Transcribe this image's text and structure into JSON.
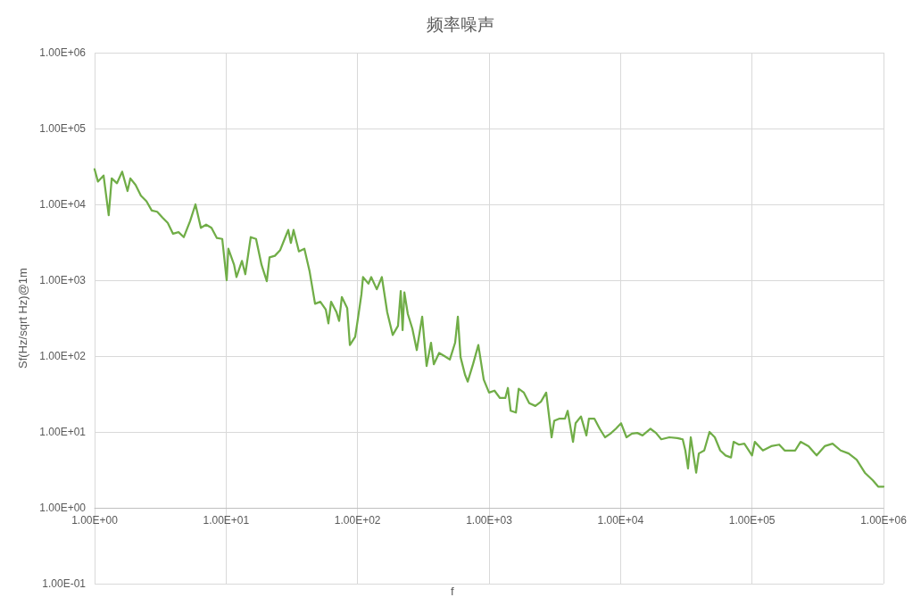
{
  "chart_data": {
    "type": "line",
    "title": "频率噪声",
    "xlabel": "f",
    "ylabel": "Sf(Hz/sqrt Hz)@1m",
    "log": "xy",
    "grid": true,
    "marker": "none",
    "line_style": "solid",
    "xlim": [
      1,
      1000000
    ],
    "xticks": [
      {
        "value": 1,
        "label": "1.00E+00"
      },
      {
        "value": 10,
        "label": "1.00E+01"
      },
      {
        "value": 100,
        "label": "1.00E+02"
      },
      {
        "value": 1000,
        "label": "1.00E+03"
      },
      {
        "value": 10000,
        "label": "1.00E+04"
      },
      {
        "value": 100000,
        "label": "1.00E+05"
      },
      {
        "value": 1000000,
        "label": "1.00E+06"
      }
    ],
    "ylim": [
      0.1,
      1000000
    ],
    "yticks": [
      {
        "value": 0.1,
        "label": "1.00E-01"
      },
      {
        "value": 1,
        "label": "1.00E+00"
      },
      {
        "value": 10,
        "label": "1.00E+01"
      },
      {
        "value": 100,
        "label": "1.00E+02"
      },
      {
        "value": 1000,
        "label": "1.00E+03"
      },
      {
        "value": 10000,
        "label": "1.00E+04"
      },
      {
        "value": 100000,
        "label": "1.00E+05"
      },
      {
        "value": 1000000,
        "label": "1.00E+06"
      }
    ],
    "series": [
      {
        "color": "#70ad47",
        "x": [
          1,
          1.06,
          1.17,
          1.28,
          1.35,
          1.48,
          1.62,
          1.78,
          1.87,
          2.05,
          2.25,
          2.48,
          2.72,
          2.99,
          3.28,
          3.6,
          3.95,
          4.35,
          4.77,
          5.32,
          5.85,
          6.43,
          7.05,
          7.74,
          8.51,
          9.35,
          10.1,
          10.4,
          11.5,
          12,
          13.2,
          14,
          15.4,
          16.9,
          18.6,
          20.4,
          21.4,
          23.5,
          25.8,
          28.4,
          29.7,
          31.1,
          32.6,
          35.8,
          39.4,
          43.2,
          47.5,
          52.1,
          57.3,
          60,
          62.9,
          69.1,
          72.4,
          75.9,
          83.4,
          87.4,
          95.9,
          100,
          107,
          110,
          121,
          127,
          140,
          153,
          168,
          185,
          203,
          213,
          220,
          227,
          241,
          261,
          282,
          310,
          335,
          362,
          380,
          417,
          458,
          503,
          552,
          579,
          607,
          656,
          688,
          755,
          829,
          911,
          1000,
          1100,
          1210,
          1330,
          1390,
          1460,
          1600,
          1680,
          1840,
          2020,
          2250,
          2480,
          2720,
          2990,
          3130,
          3440,
          3780,
          3960,
          4350,
          4550,
          5000,
          5500,
          5750,
          6320,
          6950,
          7620,
          8380,
          9200,
          10100,
          11100,
          12200,
          13400,
          14700,
          16900,
          18600,
          20400,
          23500,
          27000,
          29700,
          31100,
          32600,
          34200,
          37600,
          39400,
          43300,
          47500,
          52100,
          57300,
          62900,
          69200,
          72400,
          79600,
          87400,
          100000,
          105000,
          121000,
          140000,
          161000,
          177000,
          194000,
          213000,
          234000,
          269000,
          310000,
          357000,
          410000,
          472000,
          543000,
          625000,
          721000,
          830000,
          911000,
          1000000
        ],
        "values": [
          29000,
          20000,
          24000,
          7200,
          22000,
          19000,
          27000,
          15000,
          22000,
          18000,
          13000,
          11000,
          8300,
          8000,
          6700,
          5700,
          4100,
          4300,
          3700,
          6000,
          10000,
          4900,
          5400,
          4900,
          3600,
          3500,
          1000,
          2600,
          1600,
          1100,
          1800,
          1200,
          3700,
          3500,
          1600,
          970,
          2000,
          2100,
          2500,
          3800,
          4600,
          3100,
          4600,
          2400,
          2600,
          1300,
          490,
          520,
          410,
          270,
          520,
          380,
          290,
          600,
          430,
          140,
          180,
          290,
          650,
          1100,
          900,
          1100,
          760,
          1100,
          380,
          190,
          250,
          720,
          220,
          690,
          360,
          230,
          120,
          330,
          74,
          150,
          78,
          110,
          100,
          90,
          150,
          330,
          97,
          57,
          46,
          78,
          140,
          49,
          33,
          35,
          28,
          28,
          38,
          19,
          18,
          37,
          33,
          24,
          22,
          25,
          33,
          8.5,
          14,
          15,
          15,
          19,
          7.4,
          13,
          16,
          9,
          15,
          15,
          11,
          8.5,
          9.5,
          11,
          13,
          8.5,
          9.5,
          9.7,
          9,
          11,
          9.7,
          8,
          8.5,
          8.3,
          8,
          5.7,
          3.3,
          8.5,
          2.9,
          5.2,
          5.7,
          10,
          8.5,
          5.7,
          4.9,
          4.6,
          7.4,
          6.8,
          7,
          4.9,
          7.4,
          5.7,
          6.5,
          6.8,
          5.7,
          5.7,
          5.7,
          7.4,
          6.5,
          4.9,
          6.5,
          7,
          5.7,
          5.2,
          4.3,
          2.9,
          2.3,
          1.9,
          1.9
        ]
      }
    ]
  }
}
